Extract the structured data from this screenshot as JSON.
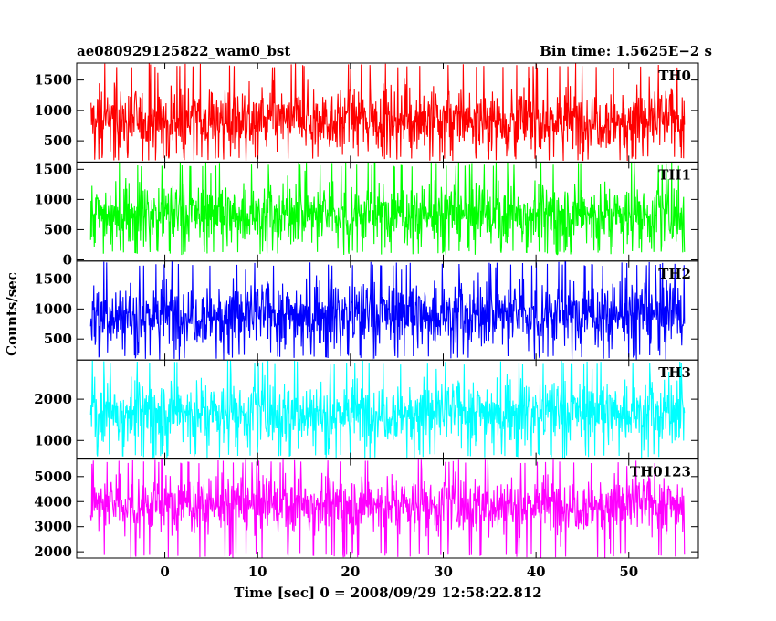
{
  "chart_data": {
    "type": "line",
    "title_left": "ae080929125822_wam0_bst",
    "title_right": "Bin time: 1.5625E−2 s",
    "ylabel": "Counts/sec",
    "xlabel": "Time [sec] 0 = 2008/09/29 12:58:22.812",
    "xlim": [
      -9.5,
      57.5
    ],
    "data_range": [
      -8.0,
      56.0
    ],
    "x_ticks": [
      0,
      10,
      20,
      30,
      40,
      50
    ],
    "x_tick_labels": [
      "0",
      "10",
      "20",
      "30",
      "40",
      "50"
    ],
    "panels": [
      {
        "name": "TH0",
        "color": "#ff0000",
        "ylim": [
          150,
          1780
        ],
        "yticks": [
          500,
          1000,
          1500
        ],
        "ytick_labels": [
          "500",
          "1000",
          "1500"
        ],
        "mean": 850,
        "spread": 260,
        "min": 170,
        "max": 1780
      },
      {
        "name": "TH1",
        "color": "#00ff00",
        "ylim": [
          -20,
          1620
        ],
        "yticks": [
          0,
          500,
          1000,
          1500
        ],
        "ytick_labels": [
          "0",
          "500",
          "1000",
          "1500"
        ],
        "mean": 760,
        "spread": 250,
        "min": 80,
        "max": 1620
      },
      {
        "name": "TH2",
        "color": "#0000ff",
        "ylim": [
          150,
          1800
        ],
        "yticks": [
          500,
          1000,
          1500
        ],
        "ytick_labels": [
          "500",
          "1000",
          "1500"
        ],
        "mean": 920,
        "spread": 270,
        "min": 160,
        "max": 1800
      },
      {
        "name": "TH3",
        "color": "#00ffff",
        "ylim": [
          550,
          2950
        ],
        "yticks": [
          1000,
          2000
        ],
        "ytick_labels": [
          "1000",
          "2000"
        ],
        "mean": 1700,
        "spread": 380,
        "min": 560,
        "max": 2950
      },
      {
        "name": "TH0123",
        "color": "#ff00ff",
        "ylim": [
          1750,
          5700
        ],
        "yticks": [
          2000,
          3000,
          4000,
          5000
        ],
        "ytick_labels": [
          "2000",
          "3000",
          "4000",
          "5000"
        ],
        "mean": 3900,
        "spread": 560,
        "min": 1760,
        "max": 5700
      }
    ]
  }
}
